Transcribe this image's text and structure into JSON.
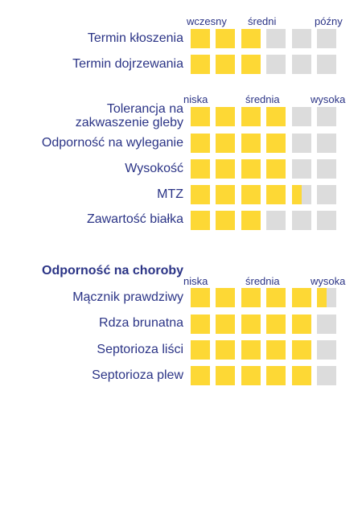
{
  "maturity_scale": [
    "wczesny",
    "średni",
    "późny"
  ],
  "resistance_scale": [
    "niska",
    "średnia",
    "wysoka"
  ],
  "section1": {
    "rows": [
      {
        "label": "Termin kłoszenia",
        "value": 3
      },
      {
        "label": "Termin dojrzewania",
        "value": 3
      }
    ]
  },
  "section2": {
    "rows": [
      {
        "label": "Tolerancja na\nzakwaszenie gleby",
        "value": 4
      },
      {
        "label": "Odporność na wyleganie",
        "value": 4
      },
      {
        "label": "Wysokość",
        "value": 4
      },
      {
        "label": "MTZ",
        "value": 4.5
      },
      {
        "label": "Zawartość białka",
        "value": 3
      }
    ]
  },
  "section3": {
    "title": "Odporność na choroby",
    "rows": [
      {
        "label": "Mącznik prawdziwy",
        "value": 5.5
      },
      {
        "label": "Rdza brunatna",
        "value": 5
      },
      {
        "label": "Septorioza liści",
        "value": 5
      },
      {
        "label": "Septorioza plew",
        "value": 5
      }
    ]
  },
  "colors": {
    "filled": "#fdd835",
    "empty": "#dcdcdc",
    "text": "#2b3486"
  },
  "max_cells": 6
}
